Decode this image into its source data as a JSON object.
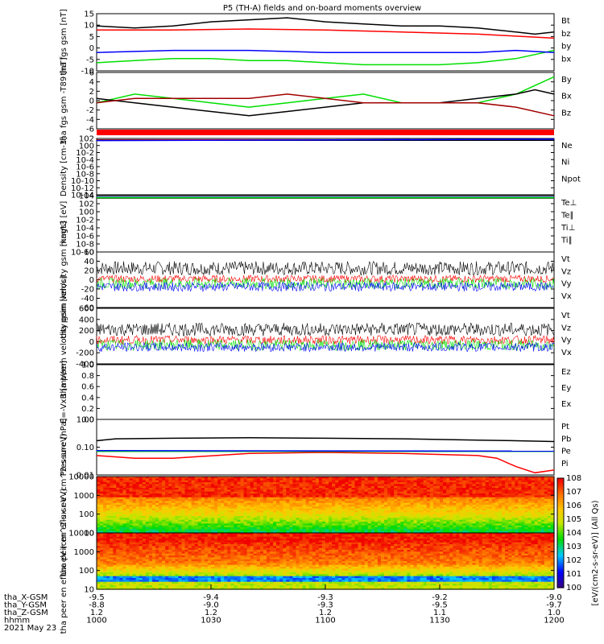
{
  "title": "P5 (TH-A) fields and on-board moments overview",
  "colors": {
    "black": "#000000",
    "red": "#ff0000",
    "darkred": "#a00000",
    "green": "#00e000",
    "blue": "#0000ff"
  },
  "x_axis": {
    "ticks": [
      "1000",
      "1030",
      "1100",
      "1130",
      "1200"
    ],
    "rows": [
      {
        "label": "tha_X-GSM",
        "values": [
          "-9.5",
          "-9.4",
          "-9.3",
          "-9.2",
          "-9.0"
        ]
      },
      {
        "label": "tha_Y-GSM",
        "values": [
          "-8.8",
          "-9.0",
          "-9.3",
          "-9.5",
          "-9.7"
        ]
      },
      {
        "label": "tha_Z-GSM",
        "values": [
          "1.2",
          "1.2",
          "1.2",
          "1.1",
          "1.0"
        ]
      },
      {
        "label": "hhmm",
        "values": [
          "1000",
          "1030",
          "1100",
          "1130",
          "1200"
        ]
      }
    ],
    "date": "2021 May 23"
  },
  "colorbar": {
    "label": "[eV/(cm2-s-sr-eV)] (All Qs)",
    "ticks": [
      "10^8",
      "10^7",
      "10^6",
      "10^5",
      "10^4",
      "10^3",
      "10^2",
      "10^1",
      "10^0"
    ]
  },
  "chart_data": [
    {
      "type": "line",
      "ylabel": "tha fgs gsm [nT]",
      "yticks": [
        "15",
        "10",
        "5",
        "0",
        "-5",
        "-10"
      ],
      "ylim": [
        -12,
        16
      ],
      "series": [
        {
          "name": "Bt",
          "color": "#000000",
          "x": [
            1000,
            1010,
            1020,
            1030,
            1040,
            1050,
            1100,
            1110,
            1120,
            1130,
            1140,
            1150,
            1155,
            1200
          ],
          "values": [
            10,
            9,
            10,
            12,
            13,
            14,
            12,
            11,
            10,
            10,
            9,
            7,
            6,
            7
          ]
        },
        {
          "name": "bz",
          "color": "#ff0000",
          "x": [
            1000,
            1020,
            1040,
            1100,
            1120,
            1140,
            1150,
            1200
          ],
          "values": [
            8,
            8,
            8.5,
            8,
            7,
            6,
            5,
            4
          ]
        },
        {
          "name": "by",
          "color": "#00e000",
          "x": [
            1000,
            1010,
            1020,
            1030,
            1040,
            1050,
            1100,
            1110,
            1120,
            1130,
            1140,
            1150,
            1200
          ],
          "values": [
            -8,
            -7,
            -6,
            -6,
            -7,
            -7,
            -8,
            -9,
            -9,
            -9,
            -8,
            -6,
            -2
          ]
        },
        {
          "name": "bx",
          "color": "#0000ff",
          "x": [
            1000,
            1020,
            1040,
            1100,
            1120,
            1140,
            1150,
            1200
          ],
          "values": [
            -3,
            -2,
            -2,
            -3,
            -3,
            -3,
            -2,
            -3
          ]
        }
      ]
    },
    {
      "type": "line",
      "ylabel": "tha fgs gsm -T89 [nT]",
      "yticks": [
        "6",
        "4",
        "2",
        "0",
        "-2",
        "-4",
        "-6"
      ],
      "ylim": [
        -7,
        6
      ],
      "series": [
        {
          "name": "By",
          "color": "#00e000",
          "x": [
            1000,
            1010,
            1020,
            1030,
            1040,
            1050,
            1100,
            1110,
            1120,
            1130,
            1140,
            1150,
            1155,
            1200
          ],
          "values": [
            -1,
            1,
            0,
            -1,
            -2,
            -1,
            0,
            1,
            -1,
            -1,
            -1,
            1,
            3,
            5
          ]
        },
        {
          "name": "Bx",
          "color": "#000000",
          "x": [
            1000,
            1010,
            1020,
            1030,
            1040,
            1050,
            1100,
            1110,
            1120,
            1130,
            1140,
            1150,
            1155,
            1200
          ],
          "values": [
            0,
            -1,
            -2,
            -3,
            -4,
            -3,
            -2,
            -1,
            -1,
            -1,
            0,
            1,
            2,
            1
          ]
        },
        {
          "name": "Bz",
          "color": "#a00000",
          "x": [
            1000,
            1010,
            1020,
            1030,
            1040,
            1050,
            1100,
            1110,
            1120,
            1130,
            1140,
            1150,
            1200
          ],
          "values": [
            -1,
            0,
            0,
            0,
            0,
            1,
            0,
            -1,
            -1,
            -1,
            -1,
            -2,
            -4
          ]
        }
      ]
    },
    {
      "type": "line",
      "ylabel": "Density [cm-3]",
      "yticks": [
        "10^2",
        "10^0",
        "10^-2",
        "10^-4",
        "10^-6",
        "10^-8",
        "10^-10",
        "10^-12",
        "10^-14"
      ],
      "ylim": [
        -14,
        2
      ],
      "log": true,
      "series": [
        {
          "name": "Ne",
          "color": "#ff0000",
          "x": [
            1000,
            1200
          ],
          "values": [
            1.6,
            1.6
          ]
        },
        {
          "name": "Ni",
          "color": "#000000",
          "x": [
            1000,
            1200
          ],
          "values": [
            1.5,
            1.5
          ]
        },
        {
          "name": "Npot",
          "color": "#0000ff",
          "x": [
            1000,
            1200
          ],
          "values": [
            1.4,
            1.8
          ]
        }
      ]
    },
    {
      "type": "line",
      "ylabel": "magt3 [eV]",
      "yticks": [
        "10^4",
        "10^2",
        "10^0",
        "10^-2",
        "10^-4",
        "10^-6",
        "10^-8",
        "10^-10"
      ],
      "ylim": [
        -10,
        4
      ],
      "log": true,
      "series": [
        {
          "name": "Te⊥",
          "color": "#ff0000",
          "x": [
            1000,
            1200
          ],
          "values": [
            3.5,
            3.5
          ]
        },
        {
          "name": "Te∥",
          "color": "#000000",
          "x": [
            1000,
            1200
          ],
          "values": [
            3.4,
            3.4
          ]
        },
        {
          "name": "Ti⊥",
          "color": "#0000ff",
          "x": [
            1000,
            1200
          ],
          "values": [
            3.6,
            3.6
          ]
        },
        {
          "name": "Ti∥",
          "color": "#00e000",
          "x": [
            1000,
            1200
          ],
          "values": [
            3.5,
            3.5
          ]
        }
      ]
    },
    {
      "type": "line",
      "ylabel": "tha peim velocity gsm [km/s]",
      "yticks": [
        "60",
        "40",
        "20",
        "0",
        "-20",
        "-40",
        "-60"
      ],
      "ylim": [
        -60,
        60
      ],
      "series": [
        {
          "name": "Vt",
          "color": "#000000",
          "mean": 25,
          "amp": 15
        },
        {
          "name": "Vz",
          "color": "#ff0000",
          "mean": 2,
          "amp": 8
        },
        {
          "name": "Vy",
          "color": "#00e000",
          "mean": -8,
          "amp": 12
        },
        {
          "name": "Vx",
          "color": "#0000ff",
          "mean": -15,
          "amp": 10
        }
      ]
    },
    {
      "type": "line",
      "ylabel": "tha peem velocity gsm [km/s]",
      "yticks": [
        "600",
        "400",
        "200",
        "0",
        "-200",
        "-400"
      ],
      "ylim": [
        -400,
        600
      ],
      "series": [
        {
          "name": "Vt",
          "color": "#000000",
          "mean": 220,
          "amp": 120
        },
        {
          "name": "Vz",
          "color": "#ff0000",
          "mean": 30,
          "amp": 80
        },
        {
          "name": "Vy",
          "color": "#00e000",
          "mean": -60,
          "amp": 100
        },
        {
          "name": "Vx",
          "color": "#0000ff",
          "mean": -100,
          "amp": 80
        }
      ]
    },
    {
      "type": "line",
      "ylabel": "E=-VxB [mV/m]",
      "yticks": [
        "1.0",
        "0.8",
        "0.6",
        "0.4",
        "0.2",
        "0.0"
      ],
      "ylim": [
        0,
        1
      ],
      "series": [
        {
          "name": "Ez",
          "color": "#ff0000",
          "x": [],
          "values": []
        },
        {
          "name": "Ey",
          "color": "#00e000",
          "x": [],
          "values": []
        },
        {
          "name": "Ex",
          "color": "#0000ff",
          "x": [],
          "values": []
        }
      ]
    },
    {
      "type": "line",
      "ylabel": "Pressure [nPa]",
      "yticks": [
        "1.00",
        "0.10",
        "0.01"
      ],
      "ylim": [
        -2,
        0
      ],
      "log": true,
      "series": [
        {
          "name": "Pt",
          "color": "#000000",
          "x": [
            1000,
            1005,
            1020,
            1040,
            1100,
            1120,
            1140,
            1150,
            1200
          ],
          "values": [
            0.17,
            0.2,
            0.21,
            0.22,
            0.21,
            0.2,
            0.18,
            0.17,
            0.16
          ]
        },
        {
          "name": "Pb",
          "color": "#ff0000",
          "x": [
            1000,
            1010,
            1020,
            1040,
            1100,
            1120,
            1140,
            1145,
            1150,
            1155,
            1200
          ],
          "values": [
            0.05,
            0.04,
            0.04,
            0.06,
            0.065,
            0.06,
            0.05,
            0.04,
            0.02,
            0.012,
            0.015
          ]
        },
        {
          "name": "Pe",
          "color": "#00e000",
          "x": [
            1000,
            1200
          ],
          "values": [
            0.07,
            0.07
          ]
        },
        {
          "name": "Pi",
          "color": "#0000ff",
          "x": [
            1000,
            1200
          ],
          "values": [
            0.075,
            0.072
          ]
        }
      ]
    },
    {
      "type": "heatmap",
      "ylabel": "tha peir en eflux eV (cm^2-s-sr-eV)",
      "yticks": [
        "10000",
        "1000",
        "100",
        "10"
      ],
      "ylim": [
        5,
        20000
      ]
    },
    {
      "type": "heatmap",
      "ylabel": "tha peer en eflux eV (cm^2-s-sr-eV)",
      "yticks": [
        "10000",
        "1000",
        "100",
        "10"
      ],
      "ylim": [
        5,
        20000
      ]
    }
  ]
}
